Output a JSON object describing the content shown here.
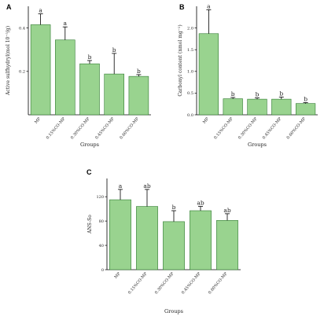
{
  "chart_data": [
    {
      "panel": "A",
      "type": "bar",
      "categories": [
        "MP",
        "0.15%CO-MP",
        "0.30%CO-MP",
        "0.45%CO-MP",
        "0.60%CO-MP"
      ],
      "values": [
        0.415,
        0.345,
        0.235,
        0.188,
        0.177
      ],
      "errors": [
        0.05,
        0.06,
        0.015,
        0.095,
        0.008
      ],
      "letters": [
        "a",
        "a",
        "b",
        "b",
        "b"
      ],
      "yticks": [
        "0.2",
        "0.4"
      ],
      "ylim": [
        0,
        0.5
      ],
      "ylabel": "Active sulfhydryl(mol 10⁻⁵/g)",
      "xlabel": "Groups",
      "bar_color": "#99d38f",
      "bar_edge": "#2f7a2f"
    },
    {
      "panel": "B",
      "type": "bar",
      "categories": [
        "MP",
        "0.15%CO-MP",
        "0.30%CO-MP",
        "0.45%CO-MP",
        "0.60%CO-MP"
      ],
      "values": [
        1.87,
        0.37,
        0.36,
        0.36,
        0.26
      ],
      "errors": [
        0.55,
        0.03,
        0.03,
        0.05,
        0.02
      ],
      "letters": [
        "a",
        "b",
        "b",
        "b",
        "b"
      ],
      "yticks": [
        "0.0",
        "0.5",
        "1.0",
        "1.5",
        "2.0"
      ],
      "ylim": [
        0,
        2.5
      ],
      "ylabel": "Carbonyl content (nmol mg⁻¹)",
      "xlabel": "Groups",
      "bar_color": "#99d38f",
      "bar_edge": "#2f7a2f"
    },
    {
      "panel": "C",
      "type": "bar",
      "categories": [
        "MP",
        "0.15%CO-MP",
        "0.30%CO-MP",
        "0.45%CO-MP",
        "0.60%CO-MP"
      ],
      "values": [
        115,
        104,
        79,
        97,
        81
      ],
      "errors": [
        17,
        28,
        18,
        7,
        11
      ],
      "letters": [
        "a",
        "ab",
        "b",
        "ab",
        "ab"
      ],
      "yticks": [
        "0",
        "40",
        "80",
        "120"
      ],
      "ylim": [
        0,
        150
      ],
      "ylabel": "ANS-So",
      "xlabel": "Groups",
      "bar_color": "#99d38f",
      "bar_edge": "#2f7a2f"
    }
  ]
}
